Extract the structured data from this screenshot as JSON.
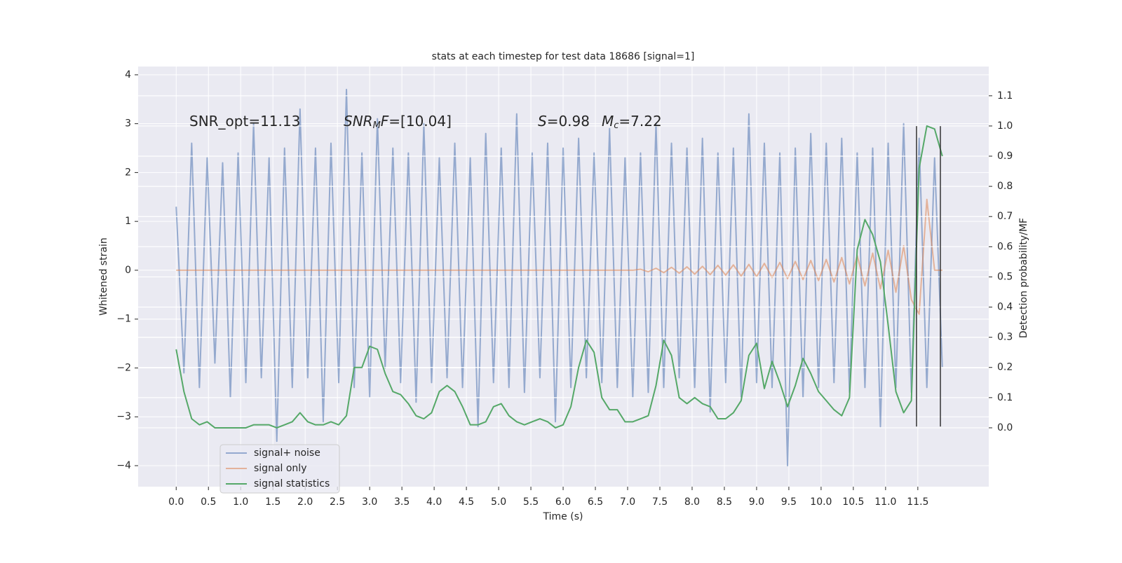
{
  "chart_data": {
    "type": "line",
    "title": "stats at each timestep for test data 18686 [signal=1]",
    "xlabel": "Time (s)",
    "ylabel": "Whitened strain",
    "y2label": "Detection probability/MF",
    "xlim": [
      -0.59,
      12.6
    ],
    "ylim": [
      -4.43,
      4.17
    ],
    "y2lim": [
      -0.195,
      1.197
    ],
    "xticks": [
      {
        "value": 0,
        "label": "0.0"
      },
      0.5,
      {
        "value": 1,
        "label": "1.0"
      },
      1.5,
      {
        "value": 2,
        "label": "2.0"
      },
      2.5,
      {
        "value": 3,
        "label": "3.0"
      },
      3.5,
      {
        "value": 4,
        "label": "4.0"
      },
      4.5,
      {
        "value": 5,
        "label": "5.0"
      },
      5.5,
      {
        "value": 6,
        "label": "6.0"
      },
      6.5,
      {
        "value": 7,
        "label": "7.0"
      },
      7.5,
      {
        "value": 8,
        "label": "8.0"
      },
      8.5,
      {
        "value": 9,
        "label": "9.0"
      },
      9.5,
      {
        "value": 10,
        "label": "10.0"
      },
      10.5,
      {
        "value": 11,
        "label": "11.0"
      },
      11.5
    ],
    "yticks": [
      {
        "value": -4,
        "label": "−4"
      },
      {
        "value": -3,
        "label": "−3"
      },
      {
        "value": -2,
        "label": "−2"
      },
      {
        "value": -1,
        "label": "−1"
      },
      0,
      1,
      2,
      3,
      4
    ],
    "y2ticks": [
      {
        "value": 0,
        "label": "0.0"
      },
      0.1,
      0.2,
      0.3,
      0.4,
      0.5,
      0.6,
      0.7,
      0.8,
      0.9,
      {
        "value": 1,
        "label": "1.0"
      },
      1.1
    ],
    "grid": true,
    "legend_loc": "lower left",
    "annotations": [
      [
        {
          "text": "SNR_opt=11.13"
        }
      ],
      [
        {
          "text": "SNR",
          "math": "italic"
        },
        {
          "text": "M",
          "math": "sub"
        },
        {
          "text": "F",
          "math": "italic"
        },
        {
          "text": "=[10.04]"
        }
      ],
      [
        {
          "text": "S",
          "math": "italic"
        },
        {
          "text": "=0.98"
        }
      ],
      [
        {
          "text": "M",
          "math": "italic"
        },
        {
          "text": "c",
          "math": "sub"
        },
        {
          "text": "=7.22"
        }
      ]
    ],
    "x": [
      0,
      0.12,
      0.24,
      0.36,
      0.48,
      0.6,
      0.72,
      0.84,
      0.96,
      1.08,
      1.2,
      1.32,
      1.44,
      1.56,
      1.68,
      1.8,
      1.92,
      2.04,
      2.16,
      2.28,
      2.4,
      2.52,
      2.64,
      2.76,
      2.88,
      3,
      3.12,
      3.24,
      3.36,
      3.48,
      3.6,
      3.72,
      3.84,
      3.96,
      4.08,
      4.2,
      4.32,
      4.44,
      4.56,
      4.68,
      4.8,
      4.92,
      5.04,
      5.16,
      5.28,
      5.4,
      5.52,
      5.64,
      5.76,
      5.88,
      6,
      6.12,
      6.24,
      6.36,
      6.48,
      6.6,
      6.72,
      6.84,
      6.96,
      7.08,
      7.2,
      7.32,
      7.44,
      7.56,
      7.68,
      7.8,
      7.92,
      8.04,
      8.16,
      8.28,
      8.4,
      8.52,
      8.64,
      8.76,
      8.88,
      9,
      9.12,
      9.24,
      9.36,
      9.48,
      9.6,
      9.72,
      9.84,
      9.96,
      10.08,
      10.2,
      10.32,
      10.44,
      10.56,
      10.68,
      10.8,
      10.92,
      11.04,
      11.16,
      11.28,
      11.4,
      11.52,
      11.64,
      11.76,
      11.88
    ],
    "series": [
      {
        "name": "signal+ noise",
        "color": "#4c72b0",
        "values": [
          1.3,
          -2.1,
          2.6,
          -2.4,
          2.3,
          -1.9,
          2.2,
          -2.6,
          2.4,
          -2.3,
          3.0,
          -2.2,
          2.3,
          -3.5,
          2.5,
          -2.4,
          3.3,
          -2.2,
          2.5,
          -3.1,
          2.6,
          -2.3,
          3.7,
          -2.4,
          2.4,
          -2.6,
          3.1,
          -2.0,
          2.5,
          -2.3,
          2.4,
          -2.7,
          3.0,
          -2.3,
          2.3,
          -2.2,
          2.6,
          -2.4,
          2.3,
          -3.2,
          2.8,
          -2.3,
          2.5,
          -2.4,
          3.2,
          -2.5,
          2.4,
          -2.2,
          2.6,
          -3.1,
          2.5,
          -2.4,
          2.7,
          -2.2,
          2.4,
          -2.3,
          2.9,
          -2.4,
          2.3,
          -2.6,
          2.4,
          -2.5,
          3.0,
          -2.4,
          2.6,
          -2.2,
          2.5,
          -2.4,
          2.7,
          -2.9,
          2.4,
          -2.3,
          2.5,
          -2.6,
          3.2,
          -2.3,
          2.6,
          -2.4,
          2.4,
          -4.0,
          2.5,
          -2.6,
          2.8,
          -2.4,
          2.6,
          -2.3,
          2.7,
          -2.5,
          2.4,
          -2.4,
          2.5,
          -3.2,
          2.6,
          -2.4,
          3.0,
          -2.5,
          2.7,
          -2.4,
          2.3,
          -2.0
        ]
      },
      {
        "name": "signal only",
        "color": "#dd8452",
        "values": [
          0,
          0,
          0,
          0,
          0,
          0,
          0,
          0,
          0,
          0,
          0,
          0,
          0,
          0,
          0,
          0,
          0,
          0,
          0,
          0,
          0,
          0,
          0,
          0,
          0,
          0,
          0,
          0,
          0,
          0,
          0,
          0,
          0,
          0,
          0,
          0,
          0,
          0,
          0,
          0,
          0,
          0,
          0,
          0,
          0,
          0,
          0,
          0,
          0,
          0,
          0,
          0,
          0,
          0,
          0,
          0,
          0,
          0,
          0,
          0,
          0.02,
          -0.03,
          0.04,
          -0.05,
          0.06,
          -0.06,
          0.07,
          -0.08,
          0.08,
          -0.09,
          0.1,
          -0.1,
          0.11,
          -0.12,
          0.12,
          -0.13,
          0.14,
          -0.15,
          0.16,
          -0.17,
          0.18,
          -0.19,
          0.2,
          -0.21,
          0.22,
          -0.24,
          0.26,
          -0.28,
          0.3,
          -0.32,
          0.35,
          -0.38,
          0.41,
          -0.45,
          0.5,
          -0.6,
          -0.9,
          1.45,
          0,
          0
        ]
      },
      {
        "name": "signal statistics",
        "color": "#55a868",
        "axis": "y2",
        "values": [
          0.26,
          0.12,
          0.03,
          0.01,
          0.02,
          0,
          0,
          0,
          0,
          0,
          0.01,
          0.01,
          0.01,
          0,
          0.01,
          0.02,
          0.05,
          0.02,
          0.01,
          0.01,
          0.02,
          0.01,
          0.04,
          0.2,
          0.2,
          0.27,
          0.26,
          0.18,
          0.12,
          0.11,
          0.08,
          0.04,
          0.03,
          0.05,
          0.12,
          0.14,
          0.12,
          0.07,
          0.01,
          0.01,
          0.02,
          0.07,
          0.08,
          0.04,
          0.02,
          0.01,
          0.02,
          0.03,
          0.02,
          0,
          0.01,
          0.07,
          0.2,
          0.29,
          0.25,
          0.1,
          0.06,
          0.06,
          0.02,
          0.02,
          0.03,
          0.04,
          0.14,
          0.29,
          0.24,
          0.1,
          0.08,
          0.1,
          0.08,
          0.07,
          0.03,
          0.03,
          0.05,
          0.09,
          0.24,
          0.28,
          0.13,
          0.22,
          0.15,
          0.07,
          0.14,
          0.23,
          0.18,
          0.12,
          0.09,
          0.06,
          0.04,
          0.1,
          0.59,
          0.69,
          0.64,
          0.55,
          0.34,
          0.12,
          0.05,
          0.09,
          0.86,
          1.0,
          0.99,
          0.9
        ]
      }
    ],
    "vlines": [
      {
        "x": 11.48,
        "ymin": -3.2,
        "ymax": 2.95,
        "color": "#333333"
      },
      {
        "x": 11.85,
        "ymin": -3.2,
        "ymax": 2.95,
        "color": "#333333"
      }
    ]
  }
}
